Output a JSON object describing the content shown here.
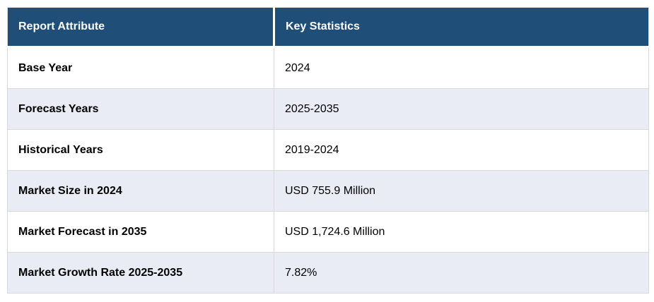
{
  "colors": {
    "header_bg": "#1f4e79",
    "header_text": "#ffffff",
    "stripe_row_bg": "#e9ebf5",
    "plain_row_bg": "#ffffff",
    "border": "#d9d9d9",
    "body_text": "#000000"
  },
  "table": {
    "columns": [
      "Report Attribute",
      "Key Statistics"
    ],
    "rows": [
      {
        "attribute": "Base Year",
        "value": "2024"
      },
      {
        "attribute": "Forecast Years",
        "value": "2025-2035"
      },
      {
        "attribute": "Historical Years",
        "value": "2019-2024"
      },
      {
        "attribute": "Market Size in 2024",
        "value": "USD 755.9 Million"
      },
      {
        "attribute": "Market Forecast in 2035",
        "value": "USD 1,724.6 Million"
      },
      {
        "attribute": "Market Growth Rate 2025-2035",
        "value": "7.82%"
      }
    ]
  },
  "chart_data": {
    "type": "table",
    "title": "",
    "columns": [
      "Report Attribute",
      "Key Statistics"
    ],
    "rows": [
      [
        "Base Year",
        "2024"
      ],
      [
        "Forecast Years",
        "2025-2035"
      ],
      [
        "Historical Years",
        "2019-2024"
      ],
      [
        "Market Size in 2024",
        "USD 755.9 Million"
      ],
      [
        "Market Forecast in 2035",
        "USD 1,724.6 Million"
      ],
      [
        "Market Growth Rate 2025-2035",
        "7.82%"
      ]
    ],
    "layout": {
      "header_style": "dark-blue, white bold text",
      "row_striping": "even rows light lavender",
      "grid": true
    }
  }
}
